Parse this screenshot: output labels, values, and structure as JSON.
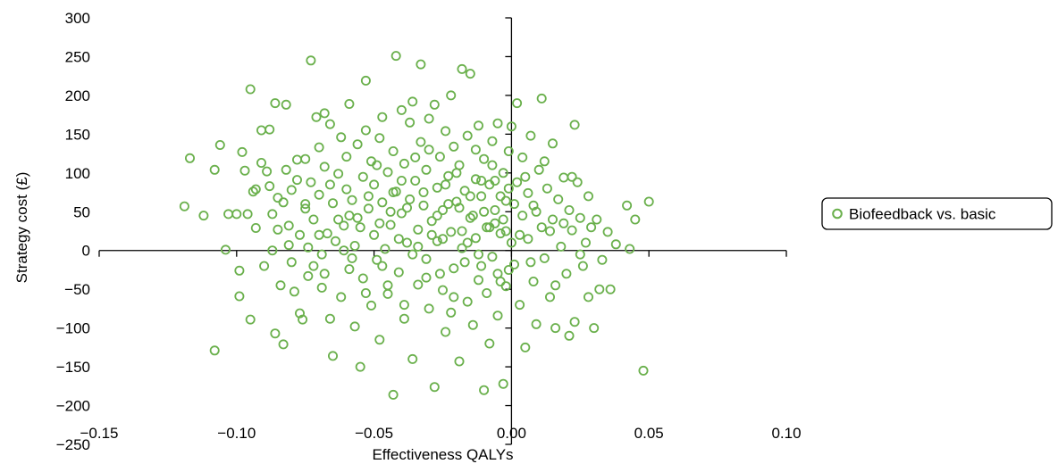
{
  "chart_data": {
    "type": "scatter",
    "xlabel": "Effectiveness QALYs",
    "ylabel": "Strategy cost (£)",
    "xlim": [
      -0.15,
      0.1
    ],
    "ylim": [
      -250,
      300
    ],
    "x_ticks": [
      -0.15,
      -0.1,
      -0.05,
      0.0,
      0.05,
      0.1
    ],
    "x_tick_labels": [
      "−0.15",
      "−0.10",
      "−0.05",
      "0.00",
      "0.05",
      "0.10"
    ],
    "y_ticks": [
      300,
      250,
      200,
      150,
      100,
      50,
      0,
      -50,
      -100,
      -150,
      -200,
      -250
    ],
    "y_tick_labels": [
      "300",
      "250",
      "200",
      "150",
      "100",
      "50",
      "0",
      "−50",
      "−100",
      "−150",
      "−200",
      "−250"
    ],
    "grid": false,
    "legend_position": "right",
    "marker_color": "#6ab04c",
    "series": [
      {
        "name": "Biofeedback vs. basic",
        "points": [
          [
            -0.119,
            57
          ],
          [
            -0.117,
            119
          ],
          [
            -0.112,
            45
          ],
          [
            -0.108,
            104
          ],
          [
            -0.108,
            -129
          ],
          [
            -0.106,
            136
          ],
          [
            -0.104,
            1
          ],
          [
            -0.103,
            47
          ],
          [
            -0.1,
            47
          ],
          [
            -0.098,
            127
          ],
          [
            -0.099,
            -59
          ],
          [
            -0.099,
            -26
          ],
          [
            -0.097,
            103
          ],
          [
            -0.096,
            47
          ],
          [
            -0.095,
            208
          ],
          [
            -0.095,
            -89
          ],
          [
            -0.094,
            76
          ],
          [
            -0.093,
            29
          ],
          [
            -0.093,
            79
          ],
          [
            -0.091,
            113
          ],
          [
            -0.091,
            155
          ],
          [
            -0.09,
            -20
          ],
          [
            -0.089,
            102
          ],
          [
            -0.088,
            156
          ],
          [
            -0.088,
            83
          ],
          [
            -0.087,
            47
          ],
          [
            -0.087,
            0
          ],
          [
            -0.086,
            190
          ],
          [
            -0.086,
            -107
          ],
          [
            -0.085,
            27
          ],
          [
            -0.085,
            68
          ],
          [
            -0.084,
            -45
          ],
          [
            -0.083,
            62
          ],
          [
            -0.083,
            -121
          ],
          [
            -0.082,
            188
          ],
          [
            -0.082,
            104
          ],
          [
            -0.081,
            32
          ],
          [
            -0.081,
            7
          ],
          [
            -0.08,
            78
          ],
          [
            -0.08,
            -15
          ],
          [
            -0.079,
            -53
          ],
          [
            -0.078,
            117
          ],
          [
            -0.078,
            91
          ],
          [
            -0.077,
            20
          ],
          [
            -0.077,
            -81
          ],
          [
            -0.076,
            -89
          ],
          [
            -0.075,
            118
          ],
          [
            -0.075,
            54
          ],
          [
            -0.074,
            4
          ],
          [
            -0.074,
            -33
          ],
          [
            -0.073,
            88
          ],
          [
            -0.073,
            245
          ],
          [
            -0.072,
            40
          ],
          [
            -0.072,
            -20
          ],
          [
            -0.071,
            172
          ],
          [
            -0.07,
            133
          ],
          [
            -0.07,
            72
          ],
          [
            -0.069,
            -5
          ],
          [
            -0.069,
            -48
          ],
          [
            -0.068,
            177
          ],
          [
            -0.068,
            108
          ],
          [
            -0.067,
            22
          ],
          [
            -0.066,
            -88
          ],
          [
            -0.066,
            163
          ],
          [
            -0.065,
            61
          ],
          [
            -0.065,
            -136
          ],
          [
            -0.064,
            12
          ],
          [
            -0.063,
            99
          ],
          [
            -0.062,
            146
          ],
          [
            -0.062,
            -60
          ],
          [
            -0.061,
            32
          ],
          [
            -0.06,
            79
          ],
          [
            -0.06,
            121
          ],
          [
            -0.059,
            -24
          ],
          [
            -0.059,
            189
          ],
          [
            -0.058,
            65
          ],
          [
            -0.057,
            6
          ],
          [
            -0.057,
            -98
          ],
          [
            -0.056,
            137
          ],
          [
            -0.056,
            42
          ],
          [
            -0.055,
            -150
          ],
          [
            -0.054,
            95
          ],
          [
            -0.054,
            -36
          ],
          [
            -0.053,
            219
          ],
          [
            -0.053,
            155
          ],
          [
            -0.052,
            54
          ],
          [
            -0.051,
            115
          ],
          [
            -0.051,
            -71
          ],
          [
            -0.05,
            20
          ],
          [
            -0.05,
            85
          ],
          [
            -0.049,
            -12
          ],
          [
            -0.048,
            145
          ],
          [
            -0.048,
            -115
          ],
          [
            -0.047,
            62
          ],
          [
            -0.047,
            172
          ],
          [
            -0.046,
            2
          ],
          [
            -0.045,
            101
          ],
          [
            -0.045,
            -56
          ],
          [
            -0.044,
            33
          ],
          [
            -0.043,
            128
          ],
          [
            -0.043,
            -186
          ],
          [
            -0.042,
            76
          ],
          [
            -0.042,
            251
          ],
          [
            -0.041,
            -28
          ],
          [
            -0.04,
            181
          ],
          [
            -0.04,
            48
          ],
          [
            -0.039,
            112
          ],
          [
            -0.039,
            -88
          ],
          [
            -0.038,
            10
          ],
          [
            -0.037,
            165
          ],
          [
            -0.037,
            66
          ],
          [
            -0.036,
            -140
          ],
          [
            -0.036,
            192
          ],
          [
            -0.035,
            90
          ],
          [
            -0.034,
            -44
          ],
          [
            -0.034,
            27
          ],
          [
            -0.033,
            140
          ],
          [
            -0.033,
            240
          ],
          [
            -0.032,
            58
          ],
          [
            -0.031,
            -11
          ],
          [
            -0.031,
            104
          ],
          [
            -0.03,
            -75
          ],
          [
            -0.03,
            170
          ],
          [
            -0.029,
            38
          ],
          [
            -0.028,
            188
          ],
          [
            -0.028,
            -176
          ],
          [
            -0.027,
            81
          ],
          [
            -0.027,
            12
          ],
          [
            -0.026,
            121
          ],
          [
            -0.025,
            -51
          ],
          [
            -0.025,
            52
          ],
          [
            -0.024,
            154
          ],
          [
            -0.024,
            -105
          ],
          [
            -0.023,
            96
          ],
          [
            -0.022,
            24
          ],
          [
            -0.022,
            200
          ],
          [
            -0.021,
            -23
          ],
          [
            -0.021,
            134
          ],
          [
            -0.02,
            63
          ],
          [
            -0.019,
            -143
          ],
          [
            -0.019,
            110
          ],
          [
            -0.018,
            3
          ],
          [
            -0.018,
            234
          ],
          [
            -0.017,
            77
          ],
          [
            -0.016,
            -66
          ],
          [
            -0.016,
            148
          ],
          [
            -0.015,
            42
          ],
          [
            -0.015,
            228
          ],
          [
            -0.014,
            -96
          ],
          [
            -0.013,
            92
          ],
          [
            -0.013,
            16
          ],
          [
            -0.012,
            161
          ],
          [
            -0.012,
            -38
          ],
          [
            -0.011,
            70
          ],
          [
            -0.01,
            -180
          ],
          [
            -0.01,
            118
          ],
          [
            -0.009,
            30
          ],
          [
            -0.008,
            -120
          ],
          [
            -0.008,
            85
          ],
          [
            -0.007,
            141
          ],
          [
            -0.007,
            -8
          ],
          [
            -0.006,
            52
          ],
          [
            -0.005,
            -84
          ],
          [
            -0.005,
            164
          ],
          [
            -0.004,
            22
          ],
          [
            -0.003,
            100
          ],
          [
            -0.003,
            -172
          ],
          [
            -0.002,
            64
          ],
          [
            -0.002,
            -46
          ],
          [
            -0.001,
            128
          ],
          [
            0.0,
            10
          ],
          [
            0.0,
            160
          ],
          [
            0.001,
            -18
          ],
          [
            0.002,
            88
          ],
          [
            0.002,
            190
          ],
          [
            0.003,
            -70
          ],
          [
            0.004,
            45
          ],
          [
            0.004,
            120
          ],
          [
            0.005,
            -125
          ],
          [
            0.006,
            74
          ],
          [
            0.006,
            15
          ],
          [
            0.007,
            148
          ],
          [
            0.008,
            -40
          ],
          [
            0.008,
            58
          ],
          [
            0.009,
            -95
          ],
          [
            0.01,
            104
          ],
          [
            0.011,
            30
          ],
          [
            0.011,
            196
          ],
          [
            0.012,
            -10
          ],
          [
            0.013,
            80
          ],
          [
            0.014,
            -60
          ],
          [
            0.015,
            138
          ],
          [
            0.015,
            40
          ],
          [
            0.016,
            -100
          ],
          [
            0.017,
            66
          ],
          [
            0.018,
            5
          ],
          [
            0.019,
            94
          ],
          [
            0.02,
            -30
          ],
          [
            0.021,
            52
          ],
          [
            0.021,
            -110
          ],
          [
            0.022,
            26
          ],
          [
            0.023,
            162
          ],
          [
            0.023,
            -92
          ],
          [
            0.024,
            88
          ],
          [
            0.025,
            42
          ],
          [
            0.026,
            -20
          ],
          [
            0.027,
            10
          ],
          [
            0.028,
            70
          ],
          [
            0.028,
            -60
          ],
          [
            0.029,
            30
          ],
          [
            0.03,
            -100
          ],
          [
            0.031,
            40
          ],
          [
            0.032,
            -50
          ],
          [
            0.033,
            -12
          ],
          [
            0.035,
            24
          ],
          [
            0.036,
            -50
          ],
          [
            0.038,
            8
          ],
          [
            0.042,
            58
          ],
          [
            0.043,
            2
          ],
          [
            0.045,
            40
          ],
          [
            0.048,
            -155
          ],
          [
            0.05,
            63
          ],
          [
            -0.07,
            20
          ],
          [
            -0.063,
            40
          ],
          [
            -0.058,
            -10
          ],
          [
            -0.052,
            70
          ],
          [
            -0.047,
            -20
          ],
          [
            -0.044,
            50
          ],
          [
            -0.04,
            90
          ],
          [
            -0.036,
            -5
          ],
          [
            -0.032,
            75
          ],
          [
            -0.029,
            20
          ],
          [
            -0.026,
            -30
          ],
          [
            -0.023,
            60
          ],
          [
            -0.02,
            100
          ],
          [
            -0.017,
            -15
          ],
          [
            -0.014,
            45
          ],
          [
            -0.011,
            90
          ],
          [
            -0.009,
            -55
          ],
          [
            -0.006,
            35
          ],
          [
            -0.004,
            70
          ],
          [
            -0.001,
            -25
          ],
          [
            -0.068,
            -30
          ],
          [
            -0.061,
            0
          ],
          [
            -0.055,
            30
          ],
          [
            -0.049,
            110
          ],
          [
            -0.045,
            -45
          ],
          [
            -0.041,
            15
          ],
          [
            -0.038,
            55
          ],
          [
            -0.035,
            120
          ],
          [
            -0.031,
            -35
          ],
          [
            -0.027,
            45
          ],
          [
            -0.024,
            85
          ],
          [
            -0.021,
            -60
          ],
          [
            -0.018,
            25
          ],
          [
            -0.015,
            70
          ],
          [
            -0.012,
            -5
          ],
          [
            -0.01,
            50
          ],
          [
            -0.007,
            110
          ],
          [
            -0.005,
            -30
          ],
          [
            -0.003,
            40
          ],
          [
            -0.001,
            80
          ],
          [
            -0.075,
            60
          ],
          [
            -0.066,
            85
          ],
          [
            -0.059,
            45
          ],
          [
            -0.053,
            -55
          ],
          [
            -0.048,
            35
          ],
          [
            -0.043,
            75
          ],
          [
            -0.039,
            -70
          ],
          [
            -0.034,
            5
          ],
          [
            -0.03,
            130
          ],
          [
            -0.025,
            15
          ],
          [
            -0.022,
            -80
          ],
          [
            -0.019,
            55
          ],
          [
            -0.016,
            10
          ],
          [
            -0.013,
            130
          ],
          [
            -0.011,
            -20
          ],
          [
            -0.008,
            30
          ],
          [
            -0.006,
            90
          ],
          [
            -0.004,
            -40
          ],
          [
            -0.002,
            25
          ],
          [
            0.001,
            60
          ],
          [
            0.003,
            20
          ],
          [
            0.005,
            95
          ],
          [
            0.007,
            -15
          ],
          [
            0.009,
            50
          ],
          [
            0.012,
            115
          ],
          [
            0.014,
            25
          ],
          [
            0.016,
            -45
          ],
          [
            0.019,
            35
          ],
          [
            0.022,
            95
          ],
          [
            0.025,
            -5
          ]
        ]
      }
    ]
  }
}
